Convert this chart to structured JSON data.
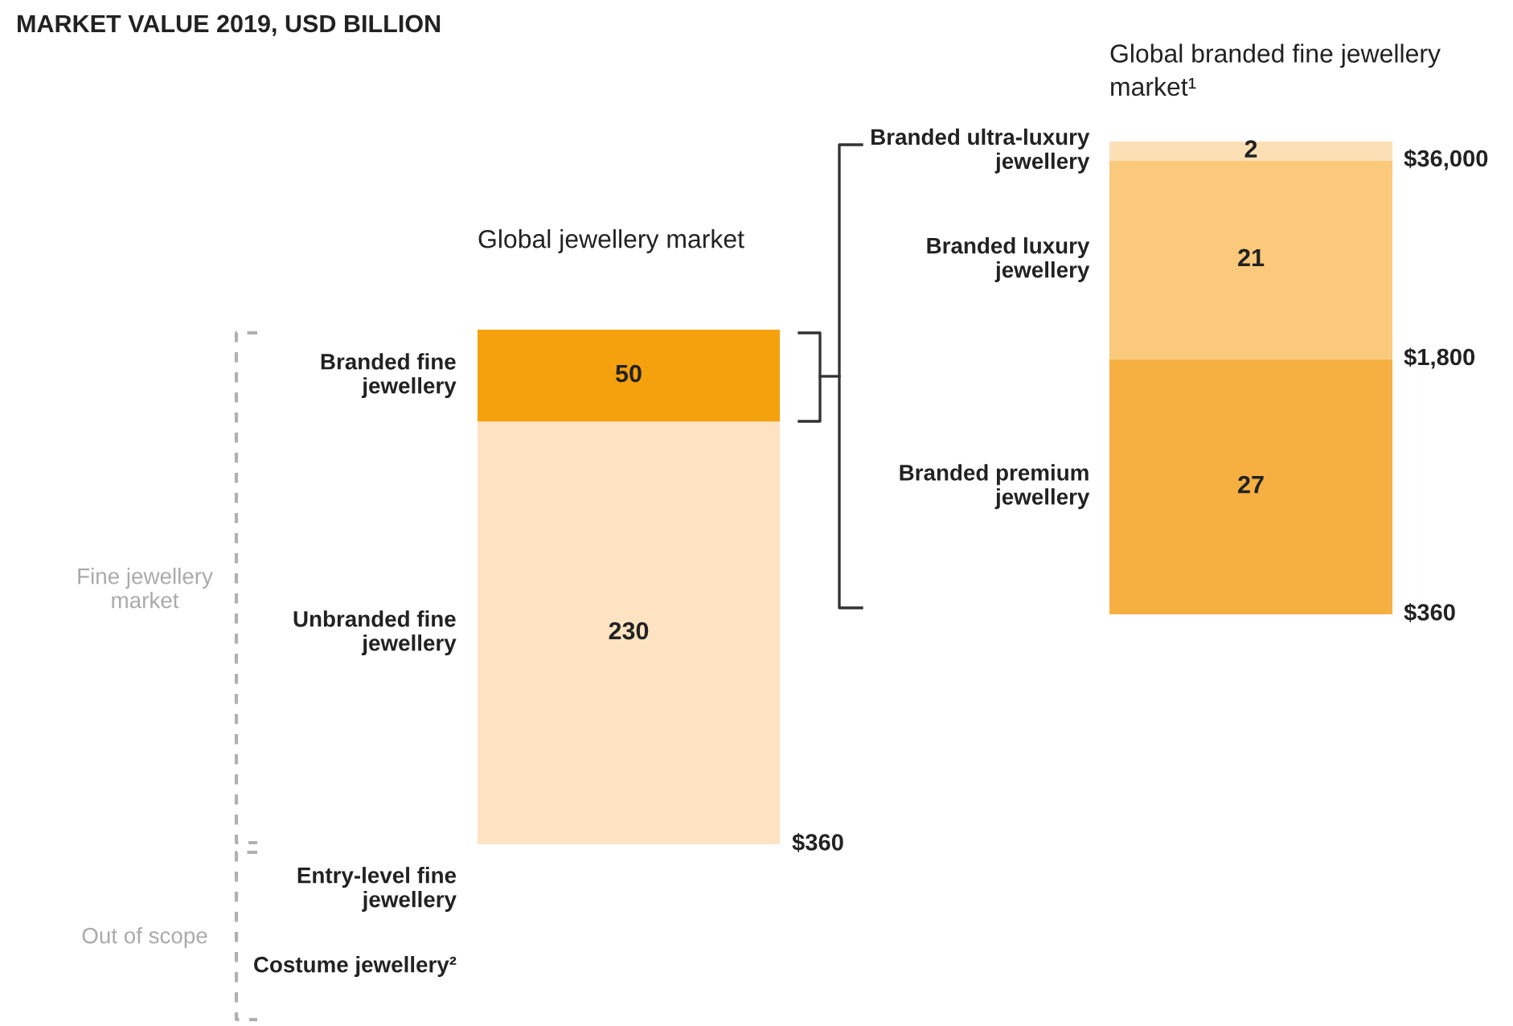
{
  "chart_data": [
    {
      "type": "bar",
      "title": "Global jewellery market",
      "categories": [
        null
      ],
      "stacked": true,
      "data_labels": true,
      "tick_labels": false,
      "legend": false,
      "series": [
        {
          "name": "Unbranded fine jewellery",
          "color": "#fde3c2",
          "values": [
            230
          ]
        },
        {
          "name": "Branded fine jewellery",
          "color": "#f5a10d",
          "values": [
            50
          ]
        }
      ],
      "annotations": [
        "$360",
        "MARKET VALUE 2019, USD BILLION",
        "Fine jewellery market",
        "Out of scope",
        "Entry-level fine jewellery",
        "Costume jewellery²"
      ]
    },
    {
      "type": "bar",
      "title": "Global branded fine jewellery market¹",
      "categories": [
        null
      ],
      "stacked": true,
      "data_labels": true,
      "tick_labels": false,
      "legend": false,
      "series": [
        {
          "name": "Branded premium jewellery",
          "color": "#f6b042",
          "values": [
            27
          ]
        },
        {
          "name": "Branded luxury jewellery",
          "color": "#fbc97b",
          "values": [
            21
          ]
        },
        {
          "name": "Branded ultra-luxury jewellery",
          "color": "#fddfb6",
          "values": [
            2
          ]
        }
      ],
      "annotations": [
        "$360",
        "$1,800",
        "$36,000"
      ]
    }
  ]
}
